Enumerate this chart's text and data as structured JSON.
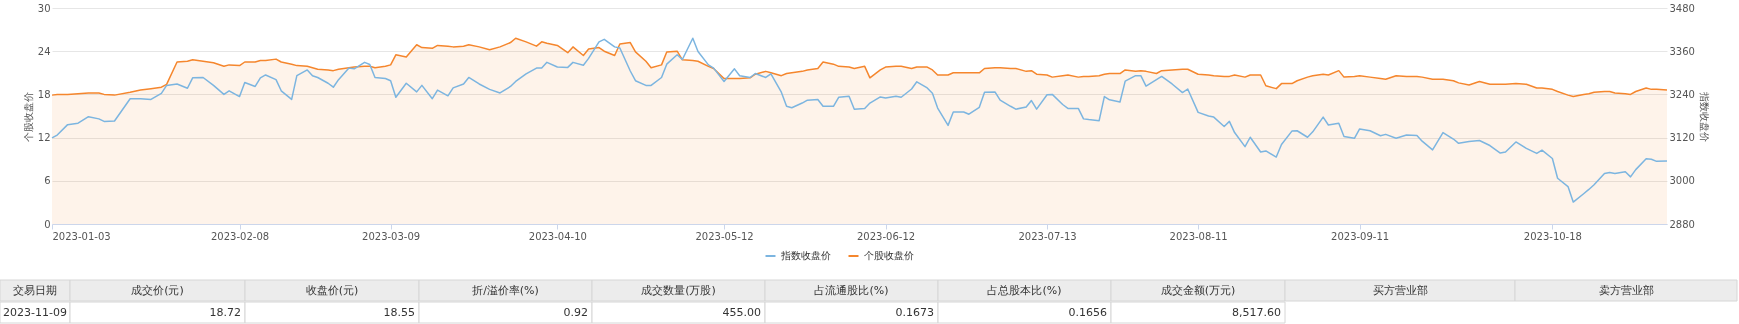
{
  "chart_data": {
    "type": "area",
    "ylabel": "个股收盘价",
    "y2label": "指数收盘价",
    "x": [
      "2023-01-03",
      "2023-01-04",
      "2023-01-06",
      "2023-01-08",
      "2023-01-10",
      "2023-01-12",
      "2023-01-13",
      "2023-01-15",
      "2023-01-18",
      "2023-01-20",
      "2023-01-22",
      "2023-01-24",
      "2023-01-25",
      "2023-01-27",
      "2023-01-29",
      "2023-01-30",
      "2023-02-01",
      "2023-02-03",
      "2023-02-05",
      "2023-02-06",
      "2023-02-08",
      "2023-02-09",
      "2023-02-11",
      "2023-02-12",
      "2023-02-13",
      "2023-02-15",
      "2023-02-16",
      "2023-02-18",
      "2023-02-19",
      "2023-02-21",
      "2023-02-22",
      "2023-02-23",
      "2023-02-25",
      "2023-02-26",
      "2023-02-27",
      "2023-03-01",
      "2023-03-02",
      "2023-03-04",
      "2023-03-05",
      "2023-03-06",
      "2023-03-08",
      "2023-03-09",
      "2023-03-10",
      "2023-03-12",
      "2023-03-14",
      "2023-03-15",
      "2023-03-17",
      "2023-03-18",
      "2023-03-20",
      "2023-03-21",
      "2023-03-23",
      "2023-03-24",
      "2023-03-26",
      "2023-03-28",
      "2023-03-30",
      "2023-04-01",
      "2023-04-02",
      "2023-04-04",
      "2023-04-06",
      "2023-04-07",
      "2023-04-08",
      "2023-04-10",
      "2023-04-12",
      "2023-04-13",
      "2023-04-15",
      "2023-04-16",
      "2023-04-18",
      "2023-04-19",
      "2023-04-21",
      "2023-04-22",
      "2023-04-24",
      "2023-04-25",
      "2023-04-27",
      "2023-04-28",
      "2023-04-30",
      "2023-05-01",
      "2023-05-03",
      "2023-05-04",
      "2023-05-06",
      "2023-05-07",
      "2023-05-09",
      "2023-05-10",
      "2023-05-12",
      "2023-05-14",
      "2023-05-15",
      "2023-05-17",
      "2023-05-18",
      "2023-05-20",
      "2023-05-21",
      "2023-05-23",
      "2023-05-24",
      "2023-05-25",
      "2023-05-27",
      "2023-05-28",
      "2023-05-30",
      "2023-05-31",
      "2023-06-02",
      "2023-06-03",
      "2023-06-05",
      "2023-06-06",
      "2023-06-08",
      "2023-06-09",
      "2023-06-11",
      "2023-06-12",
      "2023-06-14",
      "2023-06-15",
      "2023-06-17",
      "2023-06-18",
      "2023-06-20",
      "2023-06-21",
      "2023-06-22",
      "2023-06-24",
      "2023-06-25",
      "2023-06-27",
      "2023-06-28",
      "2023-06-30",
      "2023-07-01",
      "2023-07-03",
      "2023-07-04",
      "2023-07-06",
      "2023-07-07",
      "2023-07-09",
      "2023-07-10",
      "2023-07-11",
      "2023-07-13",
      "2023-07-14",
      "2023-07-16",
      "2023-07-17",
      "2023-07-19",
      "2023-07-20",
      "2023-07-21",
      "2023-07-23",
      "2023-07-24",
      "2023-07-25",
      "2023-07-27",
      "2023-07-28",
      "2023-07-30",
      "2023-07-31",
      "2023-08-01",
      "2023-08-03",
      "2023-08-04",
      "2023-08-06",
      "2023-08-08",
      "2023-08-09",
      "2023-08-11",
      "2023-08-13",
      "2023-08-14",
      "2023-08-16",
      "2023-08-17",
      "2023-08-18",
      "2023-08-20",
      "2023-08-21",
      "2023-08-23",
      "2023-08-24",
      "2023-08-26",
      "2023-08-27",
      "2023-08-29",
      "2023-08-30",
      "2023-09-01",
      "2023-09-02",
      "2023-09-04",
      "2023-09-05",
      "2023-09-07",
      "2023-09-08",
      "2023-09-10",
      "2023-09-11",
      "2023-09-13",
      "2023-09-15",
      "2023-09-16",
      "2023-09-18",
      "2023-09-20",
      "2023-09-22",
      "2023-09-23",
      "2023-09-25",
      "2023-09-27",
      "2023-09-29",
      "2023-09-30",
      "2023-10-02",
      "2023-10-04",
      "2023-10-06",
      "2023-10-08",
      "2023-10-09",
      "2023-10-11",
      "2023-10-13",
      "2023-10-15",
      "2023-10-16",
      "2023-10-18",
      "2023-10-19",
      "2023-10-21",
      "2023-10-22",
      "2023-10-24",
      "2023-10-25",
      "2023-10-26",
      "2023-10-28",
      "2023-10-29",
      "2023-10-30",
      "2023-11-01",
      "2023-11-02",
      "2023-11-03",
      "2023-11-05",
      "2023-11-06",
      "2023-11-07",
      "2023-11-09"
    ],
    "series": [
      {
        "name": "指数收盘价",
        "color": "#7cb5e0",
        "type": "line",
        "axis": "y2",
        "values": [
          3119,
          3127,
          3156,
          3160,
          3178,
          3172,
          3165,
          3166,
          3228,
          3228,
          3226,
          3243,
          3265,
          3269,
          3257,
          3286,
          3287,
          3265,
          3240,
          3250,
          3234,
          3273,
          3262,
          3286,
          3294,
          3281,
          3250,
          3226,
          3292,
          3308,
          3292,
          3287,
          3271,
          3260,
          3281,
          3313,
          3311,
          3329,
          3323,
          3287,
          3284,
          3278,
          3232,
          3271,
          3247,
          3265,
          3228,
          3252,
          3236,
          3258,
          3269,
          3287,
          3269,
          3254,
          3244,
          3262,
          3276,
          3297,
          3313,
          3313,
          3329,
          3316,
          3315,
          3329,
          3321,
          3340,
          3386,
          3393,
          3372,
          3369,
          3305,
          3278,
          3265,
          3265,
          3287,
          3324,
          3350,
          3337,
          3396,
          3359,
          3322,
          3313,
          3276,
          3311,
          3292,
          3287,
          3298,
          3287,
          3297,
          3246,
          3207,
          3203,
          3216,
          3224,
          3226,
          3207,
          3207,
          3232,
          3235,
          3199,
          3201,
          3216,
          3233,
          3230,
          3235,
          3232,
          3255,
          3275,
          3258,
          3243,
          3202,
          3154,
          3191,
          3191,
          3185,
          3204,
          3246,
          3247,
          3224,
          3207,
          3199,
          3205,
          3223,
          3199,
          3239,
          3240,
          3212,
          3201,
          3201,
          3172,
          3170,
          3167,
          3234,
          3225,
          3219,
          3277,
          3292,
          3292,
          3263,
          3281,
          3290,
          3269,
          3245,
          3255,
          3190,
          3180,
          3177,
          3151,
          3165,
          3134,
          3095,
          3121,
          3080,
          3083,
          3066,
          3101,
          3138,
          3139,
          3121,
          3136,
          3177,
          3155,
          3160,
          3123,
          3118,
          3144,
          3139,
          3125,
          3129,
          3118,
          3127,
          3126,
          3110,
          3086,
          3134,
          3116,
          3104,
          3109,
          3112,
          3098,
          3077,
          3080,
          3108,
          3090,
          3076,
          3085,
          3062,
          3007,
          2984,
          2941,
          2964,
          2976,
          2989,
          3020,
          3023,
          3020,
          3025,
          3011,
          3031,
          3061,
          3060,
          3054,
          3055
        ]
      },
      {
        "name": "个股收盘价",
        "color": "#f5862d",
        "values": [
          17.9,
          18.0,
          18.0,
          18.1,
          18.2,
          18.2,
          18.0,
          17.9,
          18.3,
          18.6,
          18.8,
          19.0,
          19.4,
          22.5,
          22.6,
          22.8,
          22.6,
          22.4,
          21.9,
          22.1,
          22.0,
          22.5,
          22.5,
          22.7,
          22.7,
          22.9,
          22.5,
          22.2,
          22.0,
          21.9,
          21.7,
          21.5,
          21.4,
          21.3,
          21.5,
          21.7,
          21.8,
          21.9,
          21.9,
          21.7,
          21.9,
          22.1,
          23.5,
          23.2,
          24.9,
          24.5,
          24.4,
          24.8,
          24.7,
          24.6,
          24.7,
          24.9,
          24.6,
          24.2,
          24.6,
          25.2,
          25.8,
          25.3,
          24.7,
          25.3,
          25.1,
          24.8,
          23.8,
          24.6,
          23.4,
          24.3,
          24.5,
          24.0,
          23.4,
          25.0,
          25.2,
          23.9,
          22.6,
          21.7,
          22.1,
          23.9,
          24.0,
          22.8,
          22.7,
          22.6,
          21.9,
          21.6,
          20.2,
          20.2,
          20.2,
          20.3,
          20.8,
          21.2,
          21.0,
          20.6,
          20.9,
          21.0,
          21.2,
          21.4,
          21.6,
          22.5,
          22.2,
          21.9,
          21.8,
          21.6,
          21.9,
          20.3,
          21.4,
          21.8,
          21.9,
          21.9,
          21.6,
          21.8,
          21.8,
          21.4,
          20.7,
          20.7,
          21.0,
          21.0,
          21.0,
          21.0,
          21.6,
          21.7,
          21.7,
          21.6,
          21.6,
          21.2,
          21.3,
          20.8,
          20.7,
          20.4,
          20.6,
          20.7,
          20.4,
          20.5,
          20.5,
          20.6,
          20.8,
          20.9,
          20.9,
          21.4,
          21.2,
          21.3,
          21.2,
          20.9,
          21.3,
          21.4,
          21.5,
          21.5,
          20.8,
          20.7,
          20.6,
          20.5,
          20.5,
          20.7,
          20.4,
          20.7,
          20.7,
          19.2,
          18.8,
          19.5,
          19.5,
          19.9,
          20.4,
          20.6,
          20.8,
          20.7,
          21.3,
          20.4,
          20.5,
          20.6,
          20.4,
          20.2,
          20.1,
          20.6,
          20.5,
          20.5,
          20.4,
          20.1,
          20.1,
          19.9,
          19.6,
          19.3,
          19.8,
          19.4,
          19.4,
          19.4,
          19.5,
          19.4,
          18.9,
          18.9,
          18.7,
          18.4,
          17.9,
          17.7,
          18.0,
          18.1,
          18.3,
          18.4,
          18.4,
          18.2,
          18.1,
          18.0,
          18.4,
          18.9,
          18.7,
          18.7,
          18.6
        ]
      }
    ],
    "xlim": [
      "2023-01-03",
      "2023-11-09"
    ],
    "xticks": [
      {
        "value": "2023-01-03",
        "label": "2023-01-03"
      },
      {
        "value": "2023-02-08",
        "label": "2023-02-08"
      },
      {
        "value": "2023-03-09",
        "label": "2023-03-09"
      },
      {
        "value": "2023-04-10",
        "label": "2023-04-10"
      },
      {
        "value": "2023-05-12",
        "label": "2023-05-12"
      },
      {
        "value": "2023-06-12",
        "label": "2023-06-12"
      },
      {
        "value": "2023-07-13",
        "label": "2023-07-13"
      },
      {
        "value": "2023-08-11",
        "label": "2023-08-11"
      },
      {
        "value": "2023-09-11",
        "label": "2023-09-11"
      },
      {
        "value": "2023-10-18",
        "label": "2023-10-18"
      }
    ],
    "ylim": [
      0,
      30
    ],
    "yticks": [
      0,
      6,
      12,
      18,
      24,
      30
    ],
    "y2lim": [
      2880,
      3480
    ],
    "y2ticks": [
      2880,
      3000,
      3120,
      3240,
      3360,
      3480
    ],
    "grid": "y",
    "legend": "bottom",
    "annotations": [
      "交易日期",
      "成交价(元)",
      "收盘价(元)",
      "折/溢价率(%)",
      "成交数量(万股)",
      "占流通股比(%)",
      "占总股本比(%)",
      "成交金额(万元)",
      "买方营业部",
      "卖方营业部",
      "2023-11-09",
      "18.72",
      "18.55",
      "0.92",
      "455.00",
      "0.1673",
      "0.1656",
      "8,517.60"
    ]
  }
}
